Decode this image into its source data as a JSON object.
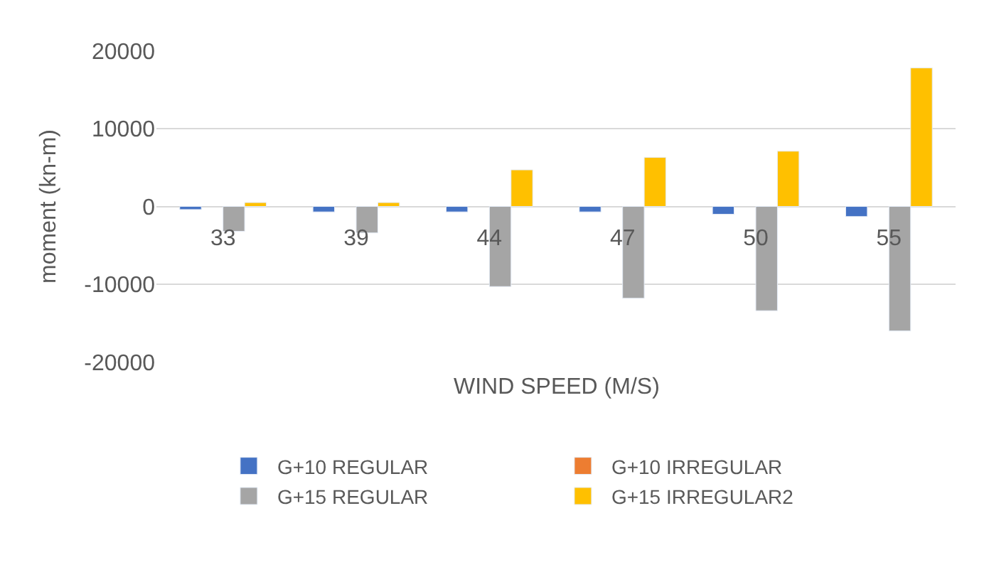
{
  "chart_data": {
    "type": "bar",
    "xlabel": "WIND SPEED (M/S)",
    "ylabel": "moment (kn-m)",
    "categories": [
      "33",
      "39",
      "44",
      "47",
      "50",
      "55"
    ],
    "series": [
      {
        "name": "G+10 REGULAR",
        "color": "#4472c4",
        "values": [
          -400,
          -700,
          -700,
          -700,
          -1000,
          -1300
        ]
      },
      {
        "name": "G+10 IRREGULAR",
        "color": "#ed7d31",
        "values": [
          null,
          null,
          null,
          null,
          null,
          null
        ]
      },
      {
        "name": "G+15 REGULAR",
        "color": "#a5a5a5",
        "values": [
          -3200,
          -3400,
          -10300,
          -11800,
          -13400,
          -16000
        ]
      },
      {
        "name": "G+15 IRREGULAR2",
        "color": "#ffc000",
        "values": [
          500,
          500,
          4700,
          6300,
          7100,
          17800
        ]
      }
    ],
    "ylim": [
      -20000,
      20000
    ],
    "yticks": [
      -20000,
      -10000,
      0,
      10000,
      20000
    ],
    "grid": "y",
    "legend": "bottom"
  }
}
